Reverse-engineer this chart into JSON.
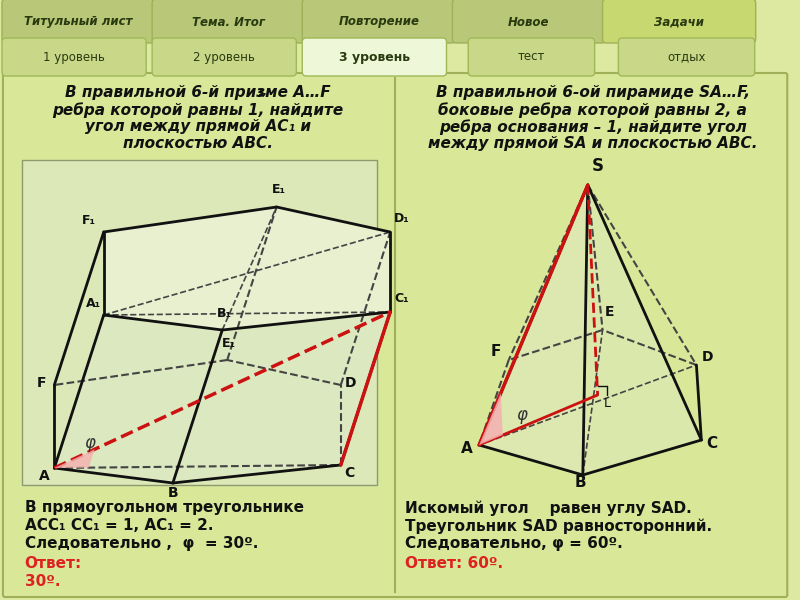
{
  "bg_color": "#dde8a0",
  "top_tab_bg": "#b8c878",
  "top_tab_active": "#c8d888",
  "bottom_tab_bg": "#c8d888",
  "bottom_tab_active": "#eef8d8",
  "content_bg": "#d8e898",
  "top_tabs": [
    "Титульный лист",
    "Тема. Итог",
    "Повторение",
    "Новое",
    "Задачи"
  ],
  "bottom_tabs": [
    "1 уровень",
    "2 уровень",
    "3 уровень",
    "тест",
    "отдых"
  ],
  "problem1_line1": "В правильной 6-й призме А…F",
  "problem1_line1b": "1",
  "problem1_line2": "ребра которой равны 1, найдите",
  "problem1_line3": "угол между прямой АС₁ и",
  "problem1_line4": "плоскостью ABC.",
  "problem2_line1": "В правильной 6-ой пирамиде SA…F,",
  "problem2_line2": "боковые ребра которой равны 2, а",
  "problem2_line3": "ребра основания – 1, найдите угол",
  "problem2_line4": "между прямой SA и плоскостью ABC.",
  "sol1_line1": "В прямоугольном треугольнике",
  "sol1_line2": "АСС₁ СС₁ = 1, АС₁ = 2.",
  "sol1_line3": "Следовательно ,  φ  = 30º.",
  "sol1_ans_label": "Ответ:",
  "sol1_ans": "30º.",
  "sol2_line1": "Искомый угол    равен углу SAD.",
  "sol2_line2": "Треугольник SAD равносторонний.",
  "sol2_line3": "Следовательно, φ = 60º.",
  "sol2_ans": "Ответ: 60º.",
  "answer_color": "#dd2222",
  "text_color": "#111111",
  "black": "#111111",
  "red": "#cc1111",
  "dashed": "#444444",
  "angle_fill": "#f4b0b0"
}
